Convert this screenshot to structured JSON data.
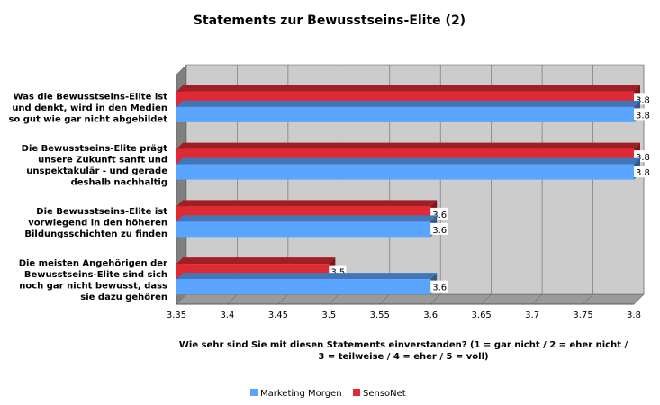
{
  "chart_data": {
    "type": "bar",
    "orientation": "horizontal",
    "title": "Statements zur Bewusstseins-Elite (2)",
    "xlabel_lines": [
      "Wie sehr sind Sie mit diesen Statements einverstanden? (1 = gar nicht / 2 = eher nicht /",
      "3 = teilweise / 4 = eher / 5 = voll)"
    ],
    "xlim": [
      3.35,
      3.8
    ],
    "ticks": [
      "3.35",
      "3.4",
      "3.45",
      "3.5",
      "3.55",
      "3.6",
      "3.65",
      "3.7",
      "3.75",
      "3.8"
    ],
    "categories": [
      [
        "Was die Bewusstseins-Elite ist",
        "und denkt, wird in den Medien",
        "so gut wie gar nicht abgebildet"
      ],
      [
        "Die Bewusstseins-Elite prägt",
        "unsere Zukunft sanft und",
        "unspektakulär - und gerade",
        "deshalb nachhaltig"
      ],
      [
        "Die Bewusstseins-Elite ist",
        "vorwiegend in den höheren",
        "Bildungsschichten zu finden"
      ],
      [
        "Die meisten Angehörigen der",
        "Bewusstseins-Elite sind sich",
        "noch gar nicht bewusst, dass",
        "sie dazu gehören"
      ]
    ],
    "series": [
      {
        "name": "SensoNet",
        "color": "#e02a33",
        "values": [
          3.8,
          3.8,
          3.6,
          3.5
        ],
        "labels": [
          "3.8",
          "3.8",
          "3.6",
          "3.5"
        ]
      },
      {
        "name": "Marketing Morgen",
        "color": "#5aa5ff",
        "values": [
          3.8,
          3.8,
          3.6,
          3.6
        ],
        "labels": [
          "3.8",
          "3.8",
          "3.6",
          "3.6"
        ]
      }
    ],
    "legend_order": [
      "Marketing Morgen",
      "SensoNet"
    ],
    "legend_position": "bottom",
    "grid": true
  }
}
